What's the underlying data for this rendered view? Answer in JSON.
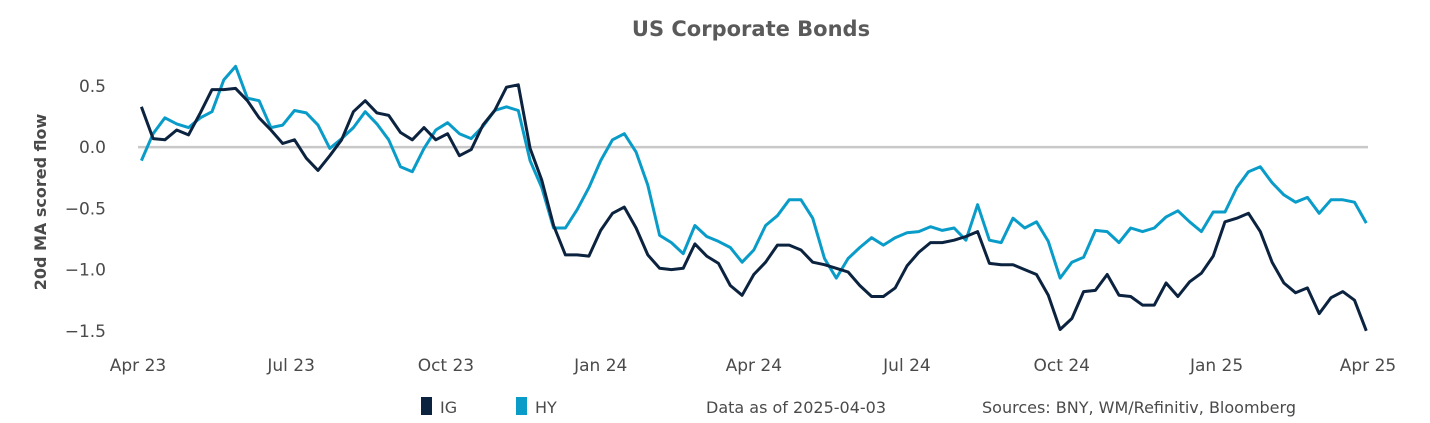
{
  "chart_data": {
    "type": "line",
    "title": "US Corporate Bonds",
    "xlabel": "",
    "ylabel": "20d MA scored flow",
    "ylim": [
      -1.6,
      0.7
    ],
    "xlim": [
      "2023-04-01",
      "2025-04-01"
    ],
    "yticks": [
      0.5,
      0.0,
      -0.5,
      -1.0,
      -1.5
    ],
    "ytick_labels": [
      "0.5",
      "0.0",
      "−0.5",
      "−1.0",
      "−1.5"
    ],
    "xticks": [
      "2023-04-01",
      "2023-07-01",
      "2023-10-01",
      "2024-01-01",
      "2024-04-01",
      "2024-07-01",
      "2024-10-01",
      "2025-01-01",
      "2025-04-01"
    ],
    "xtick_labels": [
      "Apr 23",
      "Jul 23",
      "Oct 23",
      "Jan 24",
      "Apr 24",
      "Jul 24",
      "Oct 24",
      "Jan 25",
      "Apr 25"
    ],
    "reference_line": 0,
    "grid": false,
    "legend_position": "bottom",
    "x": [
      "2023-04-03",
      "2023-04-10",
      "2023-04-17",
      "2023-04-24",
      "2023-05-01",
      "2023-05-08",
      "2023-05-15",
      "2023-05-22",
      "2023-05-29",
      "2023-06-05",
      "2023-06-12",
      "2023-06-19",
      "2023-06-26",
      "2023-07-03",
      "2023-07-10",
      "2023-07-17",
      "2023-07-24",
      "2023-07-31",
      "2023-08-07",
      "2023-08-14",
      "2023-08-21",
      "2023-08-28",
      "2023-09-04",
      "2023-09-11",
      "2023-09-18",
      "2023-09-25",
      "2023-10-02",
      "2023-10-09",
      "2023-10-16",
      "2023-10-23",
      "2023-10-30",
      "2023-11-06",
      "2023-11-13",
      "2023-11-20",
      "2023-11-27",
      "2023-12-04",
      "2023-12-11",
      "2023-12-18",
      "2023-12-25",
      "2024-01-01",
      "2024-01-08",
      "2024-01-15",
      "2024-01-22",
      "2024-01-29",
      "2024-02-05",
      "2024-02-12",
      "2024-02-19",
      "2024-02-26",
      "2024-03-04",
      "2024-03-11",
      "2024-03-18",
      "2024-03-25",
      "2024-04-01",
      "2024-04-08",
      "2024-04-15",
      "2024-04-22",
      "2024-04-29",
      "2024-05-06",
      "2024-05-13",
      "2024-05-20",
      "2024-05-27",
      "2024-06-03",
      "2024-06-10",
      "2024-06-17",
      "2024-06-24",
      "2024-07-01",
      "2024-07-08",
      "2024-07-15",
      "2024-07-22",
      "2024-07-29",
      "2024-08-05",
      "2024-08-12",
      "2024-08-19",
      "2024-08-26",
      "2024-09-02",
      "2024-09-09",
      "2024-09-16",
      "2024-09-23",
      "2024-09-30",
      "2024-10-07",
      "2024-10-14",
      "2024-10-21",
      "2024-10-28",
      "2024-11-04",
      "2024-11-11",
      "2024-11-18",
      "2024-11-25",
      "2024-12-02",
      "2024-12-09",
      "2024-12-16",
      "2024-12-23",
      "2024-12-30",
      "2025-01-06",
      "2025-01-13",
      "2025-01-20",
      "2025-01-27",
      "2025-02-03",
      "2025-02-10",
      "2025-02-17",
      "2025-02-24",
      "2025-03-03",
      "2025-03-10",
      "2025-03-17",
      "2025-03-24",
      "2025-03-31"
    ],
    "series": [
      {
        "name": "IG",
        "color": "#0c2340",
        "values": [
          0.33,
          0.07,
          0.06,
          0.14,
          0.1,
          0.28,
          0.47,
          0.47,
          0.48,
          0.38,
          0.24,
          0.14,
          0.03,
          0.06,
          -0.09,
          -0.19,
          -0.07,
          0.06,
          0.29,
          0.38,
          0.28,
          0.26,
          0.12,
          0.06,
          0.16,
          0.06,
          0.11,
          -0.07,
          -0.02,
          0.18,
          0.3,
          0.49,
          0.51,
          -0.01,
          -0.27,
          -0.64,
          -0.88,
          -0.88,
          -0.89,
          -0.68,
          -0.54,
          -0.49,
          -0.66,
          -0.88,
          -0.99,
          -1.0,
          -0.99,
          -0.79,
          -0.89,
          -0.95,
          -1.13,
          -1.21,
          -1.04,
          -0.94,
          -0.8,
          -0.8,
          -0.84,
          -0.94,
          -0.96,
          -0.99,
          -1.02,
          -1.13,
          -1.22,
          -1.22,
          -1.15,
          -0.97,
          -0.86,
          -0.78,
          -0.78,
          -0.76,
          -0.73,
          -0.69,
          -0.95,
          -0.96,
          -0.96,
          -1.0,
          -1.04,
          -1.21,
          -1.49,
          -1.4,
          -1.18,
          -1.17,
          -1.04,
          -1.21,
          -1.22,
          -1.29,
          -1.29,
          -1.11,
          -1.22,
          -1.1,
          -1.03,
          -0.89,
          -0.61,
          -0.58,
          -0.54,
          -0.69,
          -0.94,
          -1.11,
          -1.19,
          -1.15,
          -1.36,
          -1.23,
          -1.18,
          -1.25,
          -1.5
        ]
      },
      {
        "name": "HY",
        "color": "#0a9cc9",
        "values": [
          -0.11,
          0.11,
          0.24,
          0.19,
          0.16,
          0.24,
          0.29,
          0.55,
          0.66,
          0.4,
          0.38,
          0.16,
          0.18,
          0.3,
          0.28,
          0.18,
          -0.01,
          0.07,
          0.16,
          0.29,
          0.19,
          0.06,
          -0.16,
          -0.2,
          -0.01,
          0.14,
          0.2,
          0.11,
          0.07,
          0.17,
          0.3,
          0.33,
          0.3,
          -0.11,
          -0.33,
          -0.66,
          -0.66,
          -0.51,
          -0.33,
          -0.11,
          0.06,
          0.11,
          -0.04,
          -0.31,
          -0.72,
          -0.78,
          -0.87,
          -0.64,
          -0.73,
          -0.77,
          -0.82,
          -0.94,
          -0.84,
          -0.64,
          -0.56,
          -0.43,
          -0.43,
          -0.58,
          -0.91,
          -1.07,
          -0.91,
          -0.82,
          -0.74,
          -0.8,
          -0.74,
          -0.7,
          -0.69,
          -0.65,
          -0.68,
          -0.66,
          -0.76,
          -0.47,
          -0.76,
          -0.78,
          -0.58,
          -0.66,
          -0.61,
          -0.77,
          -1.07,
          -0.94,
          -0.9,
          -0.68,
          -0.69,
          -0.78,
          -0.66,
          -0.69,
          -0.66,
          -0.57,
          -0.52,
          -0.61,
          -0.69,
          -0.53,
          -0.53,
          -0.33,
          -0.2,
          -0.16,
          -0.29,
          -0.39,
          -0.45,
          -0.41,
          -0.54,
          -0.43,
          -0.43,
          -0.45,
          -0.62
        ]
      }
    ]
  },
  "footer": {
    "data_as_of": "Data as of 2025-04-03",
    "sources": "Sources:  BNY, WM/Refinitiv, Bloomberg"
  }
}
